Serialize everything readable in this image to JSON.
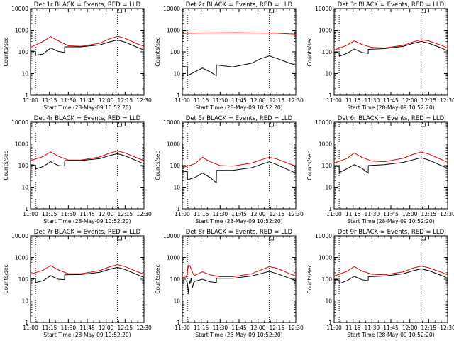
{
  "chart_data": {
    "type": "line",
    "y_scale": "log",
    "ylim": [
      1,
      10000
    ],
    "xlim": [
      "11:00",
      "12:30"
    ],
    "ylabel": "Counts/sec",
    "xlabel": "Start Time (28-May-09 10:52:20)",
    "x_tick_labels": [
      "11:00",
      "11:15",
      "11:30",
      "11:45",
      "12:00",
      "12:15",
      "12:30"
    ],
    "y_tick_labels": [
      "1",
      "10",
      "100",
      "1000",
      "10000"
    ],
    "vertical_dotted_lines": [
      "11:04",
      "12:09"
    ],
    "series_colors": {
      "events": "#000000",
      "lld": "#e00000"
    },
    "panels": [
      {
        "title": "Det 1r BLACK = Events, RED = LLD",
        "events": {
          "x": [
            0,
            4,
            4.1,
            10,
            16,
            22,
            27,
            27.1,
            40,
            55,
            62,
            69,
            75,
            85,
            90
          ],
          "y": [
            110,
            105,
            70,
            80,
            150,
            105,
            95,
            170,
            170,
            210,
            280,
            350,
            280,
            160,
            120
          ]
        },
        "lld": {
          "x": [
            0,
            10,
            16,
            22,
            30,
            40,
            55,
            62,
            69,
            75,
            85,
            90
          ],
          "y": [
            160,
            300,
            500,
            320,
            190,
            180,
            250,
            380,
            520,
            420,
            230,
            180
          ]
        }
      },
      {
        "title": "Det 2r BLACK = Events, RED = LLD",
        "events": {
          "x": [
            0,
            4,
            4.1,
            10,
            16,
            22,
            27,
            27.1,
            40,
            55,
            62,
            69,
            75,
            85,
            90
          ],
          "y": [
            22,
            20,
            8,
            12,
            18,
            12,
            8,
            25,
            20,
            30,
            48,
            65,
            50,
            30,
            25
          ]
        },
        "lld": {
          "x": [
            0,
            15,
            30,
            45,
            60,
            75,
            90
          ],
          "y": [
            700,
            740,
            750,
            760,
            740,
            720,
            650
          ]
        }
      },
      {
        "title": "Det 3r BLACK = Events, RED = LLD",
        "events": {
          "x": [
            0,
            4,
            4.1,
            10,
            16,
            22,
            27,
            27.1,
            40,
            55,
            62,
            69,
            75,
            85,
            90
          ],
          "y": [
            95,
            92,
            62,
            85,
            135,
            95,
            85,
            130,
            140,
            180,
            240,
            300,
            250,
            150,
            110
          ]
        },
        "lld": {
          "x": [
            0,
            10,
            16,
            22,
            30,
            40,
            55,
            62,
            69,
            75,
            85,
            90
          ],
          "y": [
            120,
            200,
            320,
            220,
            160,
            150,
            200,
            280,
            360,
            320,
            200,
            150
          ]
        }
      },
      {
        "title": "Det 4r BLACK = Events, RED = LLD",
        "events": {
          "x": [
            0,
            4,
            4.1,
            10,
            16,
            22,
            27,
            27.1,
            40,
            55,
            62,
            69,
            75,
            85,
            90
          ],
          "y": [
            110,
            105,
            70,
            90,
            150,
            100,
            95,
            170,
            170,
            210,
            280,
            350,
            280,
            160,
            120
          ]
        },
        "lld": {
          "x": [
            0,
            10,
            16,
            22,
            30,
            40,
            55,
            62,
            69,
            75,
            85,
            90
          ],
          "y": [
            170,
            260,
            420,
            270,
            180,
            180,
            250,
            360,
            470,
            380,
            220,
            170
          ]
        }
      },
      {
        "title": "Det 5r BLACK = Events, RED = LLD",
        "events": {
          "x": [
            0,
            4,
            4.1,
            10,
            16,
            22,
            27,
            27.1,
            40,
            55,
            62,
            69,
            75,
            85,
            90
          ],
          "y": [
            55,
            52,
            22,
            28,
            45,
            28,
            16,
            60,
            60,
            80,
            110,
            150,
            110,
            60,
            45
          ]
        },
        "lld": {
          "x": [
            0,
            10,
            16,
            22,
            30,
            40,
            55,
            62,
            69,
            75,
            85,
            90
          ],
          "y": [
            80,
            120,
            240,
            150,
            100,
            95,
            130,
            180,
            240,
            200,
            120,
            95
          ]
        }
      },
      {
        "title": "Det 6r BLACK = Events, RED = LLD",
        "events": {
          "x": [
            0,
            4,
            4.1,
            10,
            16,
            22,
            27,
            27.1,
            40,
            55,
            62,
            69,
            75,
            85,
            90
          ],
          "y": [
            95,
            90,
            48,
            70,
            110,
            75,
            45,
            100,
            110,
            140,
            180,
            230,
            180,
            100,
            75
          ]
        },
        "lld": {
          "x": [
            0,
            10,
            16,
            22,
            30,
            40,
            55,
            62,
            69,
            75,
            85,
            90
          ],
          "y": [
            130,
            210,
            380,
            240,
            160,
            150,
            220,
            320,
            420,
            340,
            190,
            140
          ]
        }
      },
      {
        "title": "Det 7r BLACK = Events, RED = LLD",
        "events": {
          "x": [
            0,
            4,
            4.1,
            10,
            16,
            22,
            27,
            27.1,
            40,
            55,
            62,
            69,
            75,
            85,
            90
          ],
          "y": [
            110,
            105,
            70,
            85,
            145,
            100,
            95,
            160,
            165,
            210,
            280,
            350,
            280,
            160,
            120
          ]
        },
        "lld": {
          "x": [
            0,
            10,
            16,
            22,
            30,
            40,
            55,
            62,
            69,
            75,
            85,
            90
          ],
          "y": [
            170,
            260,
            420,
            270,
            180,
            180,
            250,
            360,
            470,
            380,
            220,
            170
          ]
        }
      },
      {
        "title": "Det 8r BLACK = Events, RED = LLD",
        "events": {
          "x": [
            0,
            2,
            3,
            4,
            5,
            5.5,
            6,
            7,
            8,
            9,
            10,
            16,
            22,
            27,
            27.1,
            40,
            55,
            62,
            69,
            75,
            85,
            90
          ],
          "y": [
            80,
            82,
            85,
            70,
            20,
            90,
            60,
            110,
            40,
            70,
            80,
            100,
            75,
            70,
            110,
            110,
            140,
            180,
            230,
            180,
            110,
            85
          ]
        },
        "lld": {
          "x": [
            0,
            3,
            4,
            4.5,
            5,
            6,
            7,
            8,
            9,
            10,
            16,
            22,
            30,
            40,
            55,
            62,
            69,
            75,
            85,
            90
          ],
          "y": [
            120,
            125,
            180,
            450,
            350,
            420,
            300,
            220,
            160,
            150,
            220,
            160,
            130,
            130,
            180,
            260,
            380,
            320,
            180,
            140
          ]
        }
      },
      {
        "title": "Det 9r BLACK = Events, RED = LLD",
        "events": {
          "x": [
            0,
            4,
            4.1,
            10,
            16,
            22,
            27,
            27.1,
            40,
            55,
            62,
            69,
            75,
            85,
            90
          ],
          "y": [
            95,
            92,
            62,
            85,
            135,
            95,
            85,
            130,
            140,
            180,
            240,
            300,
            250,
            150,
            110
          ]
        },
        "lld": {
          "x": [
            0,
            10,
            16,
            22,
            30,
            40,
            55,
            62,
            69,
            75,
            85,
            90
          ],
          "y": [
            140,
            230,
            380,
            240,
            170,
            160,
            220,
            320,
            400,
            340,
            210,
            160
          ]
        }
      }
    ]
  }
}
